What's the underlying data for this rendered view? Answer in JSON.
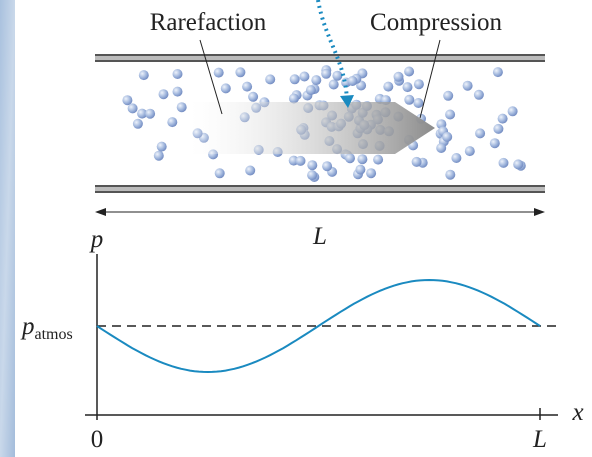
{
  "labels": {
    "rarefaction": "Rarefaction",
    "compression": "Compression",
    "tube_length": "L"
  },
  "graph": {
    "y_axis": "p",
    "reference": {
      "symbol": "p",
      "subscript": "atmos"
    },
    "x_axis": "x",
    "x_start": "0",
    "x_end": "L"
  }
}
